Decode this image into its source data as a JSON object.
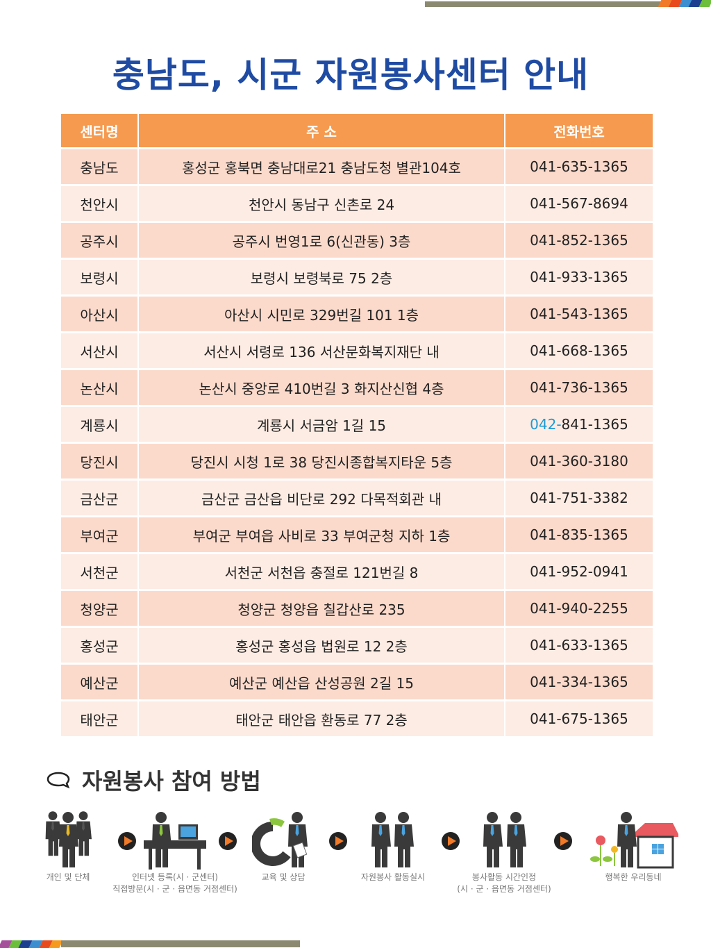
{
  "title": "충남도, 시군 자원봉사센터 안내",
  "table": {
    "headers": [
      "센터명",
      "주 소",
      "전화번호"
    ],
    "rows": [
      {
        "name": "충남도",
        "address": "홍성군 홍북면 충남대로21 충남도청 별관104호",
        "phone_prefix": "041-",
        "phone_rest": "635-1365",
        "highlight": false
      },
      {
        "name": "천안시",
        "address": "천안시 동남구 신촌로 24",
        "phone_prefix": "041-",
        "phone_rest": "567-8694",
        "highlight": false
      },
      {
        "name": "공주시",
        "address": "공주시 번영1로 6(신관동) 3층",
        "phone_prefix": "041-",
        "phone_rest": "852-1365",
        "highlight": false
      },
      {
        "name": "보령시",
        "address": "보령시 보령북로 75 2층",
        "phone_prefix": "041-",
        "phone_rest": "933-1365",
        "highlight": false
      },
      {
        "name": "아산시",
        "address": "아산시 시민로 329번길 101 1층",
        "phone_prefix": "041-",
        "phone_rest": "543-1365",
        "highlight": false
      },
      {
        "name": "서산시",
        "address": "서산시 서령로 136 서산문화복지재단 내",
        "phone_prefix": "041-",
        "phone_rest": "668-1365",
        "highlight": false
      },
      {
        "name": "논산시",
        "address": "논산시 중앙로 410번길 3 화지산신협 4층",
        "phone_prefix": "041-",
        "phone_rest": "736-1365",
        "highlight": false
      },
      {
        "name": "계룡시",
        "address": "계룡시 서금암 1길 15",
        "phone_prefix": "042-",
        "phone_rest": "841-1365",
        "highlight": true
      },
      {
        "name": "당진시",
        "address": "당진시 시청 1로 38 당진시종합복지타운 5층",
        "phone_prefix": "041-",
        "phone_rest": "360-3180",
        "highlight": false
      },
      {
        "name": "금산군",
        "address": "금산군 금산읍 비단로 292 다목적회관 내",
        "phone_prefix": "041-",
        "phone_rest": "751-3382",
        "highlight": false
      },
      {
        "name": "부여군",
        "address": "부여군 부여읍 사비로 33 부여군청 지하 1층",
        "phone_prefix": "041-",
        "phone_rest": "835-1365",
        "highlight": false
      },
      {
        "name": "서천군",
        "address": "서천군 서천읍 충절로 121번길 8",
        "phone_prefix": "041-",
        "phone_rest": "952-0941",
        "highlight": false
      },
      {
        "name": "청양군",
        "address": "청양군 청양읍 칠갑산로 235",
        "phone_prefix": "041-",
        "phone_rest": "940-2255",
        "highlight": false
      },
      {
        "name": "홍성군",
        "address": "홍성군 홍성읍 법원로 12 2층",
        "phone_prefix": "041-",
        "phone_rest": "633-1365",
        "highlight": false
      },
      {
        "name": "예산군",
        "address": "예산군 예산읍 산성공원 2길 15",
        "phone_prefix": "041-",
        "phone_rest": "334-1365",
        "highlight": false
      },
      {
        "name": "태안군",
        "address": "태안군 태안읍 환동로 77 2층",
        "phone_prefix": "041-",
        "phone_rest": "675-1365",
        "highlight": false
      }
    ]
  },
  "section": {
    "title": "자원봉사 참여 방법"
  },
  "steps": [
    {
      "line1": "개인 및 단체",
      "line2": ""
    },
    {
      "line1": "인터넷 등록(시 · 군센터)",
      "line2": "직접방문(시 · 군 · 읍면동 거점센터)"
    },
    {
      "line1": "교육 및 상담",
      "line2": ""
    },
    {
      "line1": "자원봉사 활동실시",
      "line2": ""
    },
    {
      "line1": "봉사활동 시간인정",
      "line2": "(시 · 군 · 읍면동 거점센터)"
    },
    {
      "line1": "행복한 우리동네",
      "line2": ""
    }
  ],
  "colors": {
    "title": "#1f4ba3",
    "header": "#f59a4f",
    "row_odd": "#fbdacb",
    "row_even": "#fdece4",
    "highlight": "#1a9ad6"
  }
}
